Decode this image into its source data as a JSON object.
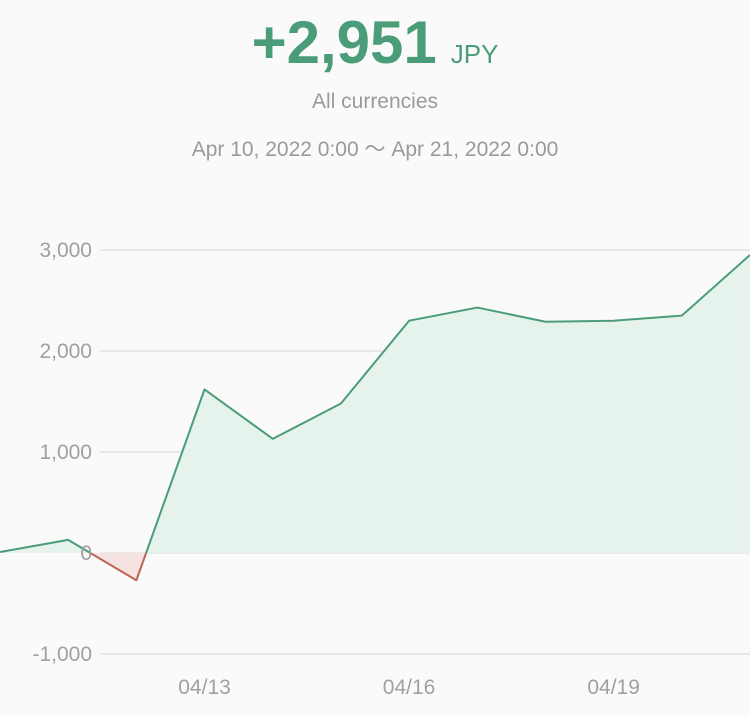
{
  "summary": {
    "total": "+2,951",
    "unit": "JPY",
    "currency_filter": "All currencies",
    "range_start": "Apr 10, 2022 0:00",
    "range_separator": "〜",
    "range_end": "Apr 21, 2022 0:00"
  },
  "colors": {
    "positive": "#4a9d78",
    "positive_fill": "#e6f2ec",
    "negative": "#c0645a",
    "negative_fill": "#f5e3e1",
    "grid": "#e2e2e2",
    "label": "#a0a0a0"
  },
  "chart_data": {
    "type": "area",
    "title": "",
    "xlabel": "",
    "ylabel": "",
    "ylim": [
      -1000,
      3000
    ],
    "xlim": [
      "2022-04-10",
      "2022-04-21"
    ],
    "yticks": [
      3000,
      2000,
      1000,
      0,
      -1000
    ],
    "ytick_labels": [
      "3,000",
      "2,000",
      "1,000",
      "0",
      "-1,000"
    ],
    "xticks": [
      "2022-04-13",
      "2022-04-16",
      "2022-04-19"
    ],
    "xtick_labels": [
      "04/13",
      "04/16",
      "04/19"
    ],
    "grid": true,
    "series": [
      {
        "x": [
          "2022-04-10",
          "2022-04-11",
          "2022-04-12",
          "2022-04-13",
          "2022-04-14",
          "2022-04-15",
          "2022-04-16",
          "2022-04-17",
          "2022-04-18",
          "2022-04-19",
          "2022-04-20",
          "2022-04-21"
        ],
        "values": [
          10,
          130,
          -270,
          1620,
          1130,
          1480,
          2300,
          2430,
          2290,
          2300,
          2350,
          2951
        ]
      }
    ]
  }
}
